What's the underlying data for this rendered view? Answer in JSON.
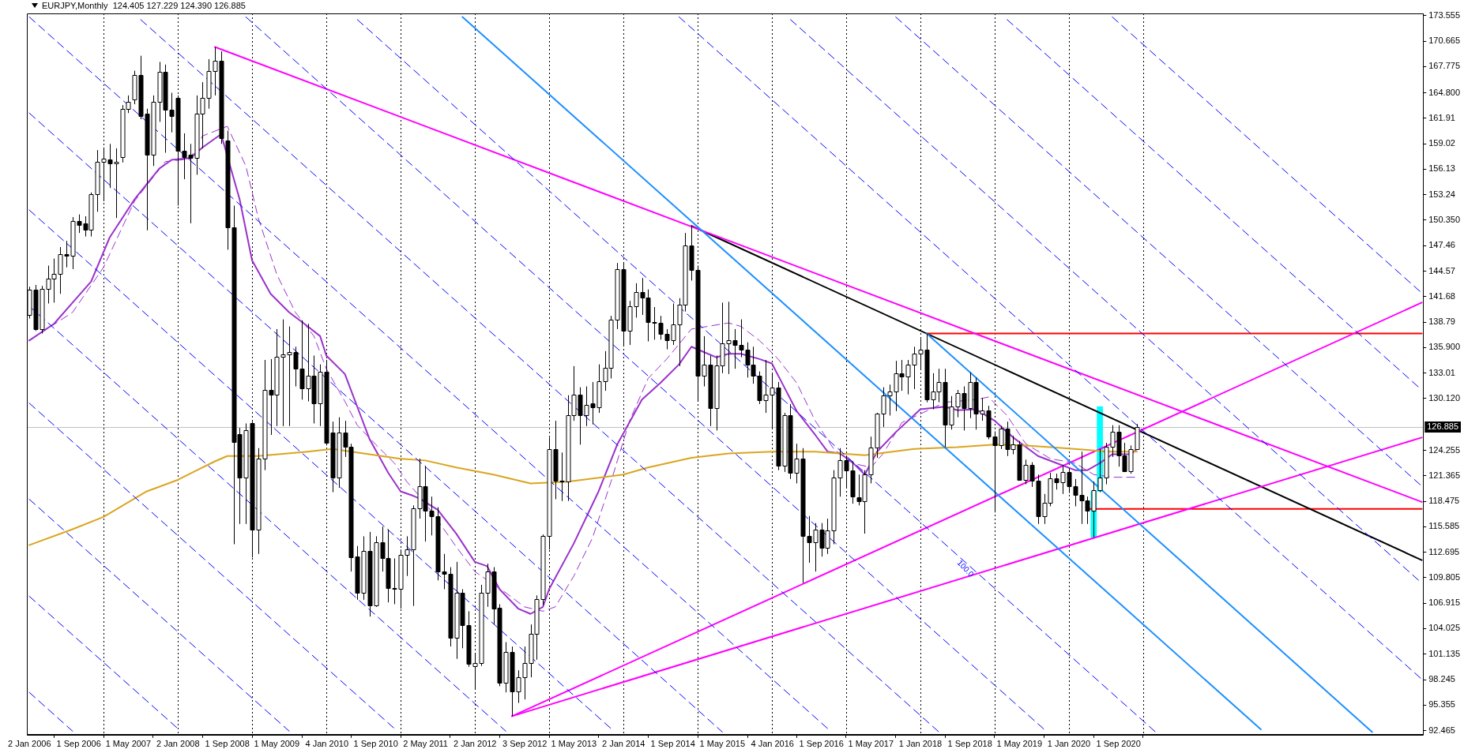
{
  "chart_data": {
    "type": "candlestick",
    "title": "EURJPY,Monthly  124.405 127.229 124.390 126.885",
    "color": "#000000",
    "colors": [
      "#ffffff",
      "#000000",
      "#ffffff",
      "#ffffff",
      "#ffffff",
      "#ffffff",
      "#000000",
      "#ffffff",
      "#000000",
      "#000000",
      "#ffffff",
      "#ffffff",
      "#ffffff",
      "#000000",
      "#ffffff",
      "#ffffff",
      "#ffffff",
      "#ffffff",
      "#000000",
      "#000000",
      "#ffffff",
      "#ffffff",
      "#000000",
      "#000000",
      "#000000",
      "#000000",
      "#000000",
      "#ffffff",
      "#ffffff",
      "#ffffff",
      "#ffffff",
      "#000000",
      "#000000",
      "#000000",
      "#000000",
      "#ffffff",
      "#000000",
      "#ffffff",
      "#ffffff",
      "#000000",
      "#ffffff",
      "#ffffff",
      "#ffffff",
      "#000000",
      "#000000",
      "#ffffff",
      "#000000",
      "#ffffff",
      "#000000",
      "#000000",
      "#ffffff",
      "#000000",
      "#000000",
      "#000000",
      "#ffffff",
      "#000000",
      "#ffffff",
      "#000000",
      "#000000",
      "#000000",
      "#ffffff",
      "#ffffff",
      "#ffffff",
      "#ffffff",
      "#000000",
      "#000000",
      "#000000",
      "#000000",
      "#000000",
      "#ffffff",
      "#000000",
      "#000000",
      "#ffffff",
      "#ffffff",
      "#ffffff",
      "#000000",
      "#000000",
      "#ffffff",
      "#000000",
      "#ffffff",
      "#ffffff",
      "#ffffff",
      "#ffffff",
      "#ffffff",
      "#ffffff",
      "#000000",
      "#000000",
      "#ffffff",
      "#ffffff",
      "#000000",
      "#ffffff",
      "#000000",
      "#ffffff",
      "#ffffff",
      "#ffffff",
      "#ffffff",
      "#000000",
      "#ffffff",
      "#ffffff",
      "#000000",
      "#000000",
      "#000000",
      "#000000",
      "#000000",
      "#ffffff",
      "#ffffff",
      "#ffffff",
      "#000000",
      "#000000",
      "#ffffff",
      "#000000",
      "#ffffff",
      "#ffffff",
      "#ffffff",
      "#000000",
      "#000000",
      "#000000",
      "#000000",
      "#000000",
      "#ffffff",
      "#ffffff",
      "#000000",
      "#ffffff",
      "#000000",
      "#ffffff",
      "#000000",
      "#000000",
      "#ffffff",
      "#000000",
      "#ffffff",
      "#ffffff",
      "#ffffff",
      "#000000",
      "#000000",
      "#000000",
      "#ffffff",
      "#ffffff",
      "#ffffff",
      "#ffffff",
      "#ffffff",
      "#ffffff",
      "#000000",
      "#ffffff",
      "#ffffff",
      "#ffffff",
      "#000000",
      "#ffffff",
      "#ffffff",
      "#000000",
      "#ffffff",
      "#ffffff",
      "#000000",
      "#ffffff",
      "#000000",
      "#ffffff",
      "#000000",
      "#000000",
      "#ffffff",
      "#000000",
      "#ffffff",
      "#000000",
      "#ffffff",
      "#000000",
      "#000000",
      "#ffffff",
      "#ffffff",
      "#000000",
      "#ffffff",
      "#000000",
      "#000000",
      "#000000",
      "#000000",
      "#ffffff",
      "#ffffff",
      "#ffffff",
      "#ffffff",
      "#000000",
      "#000000",
      "#ffffff",
      "#ffffff"
    ],
    "marker": "none",
    "x": [
      "2006-01",
      "2006-02",
      "2006-03",
      "2006-04",
      "2006-05",
      "2006-06",
      "2006-07",
      "2006-08",
      "2006-09",
      "2006-10",
      "2006-11",
      "2006-12",
      "2007-01",
      "2007-02",
      "2007-03",
      "2007-04",
      "2007-05",
      "2007-06",
      "2007-07",
      "2007-08",
      "2007-09",
      "2007-10",
      "2007-11",
      "2007-12",
      "2008-01",
      "2008-02",
      "2008-03",
      "2008-04",
      "2008-05",
      "2008-06",
      "2008-07",
      "2008-08",
      "2008-09",
      "2008-10",
      "2008-11",
      "2008-12",
      "2009-01",
      "2009-02",
      "2009-03",
      "2009-04",
      "2009-05",
      "2009-06",
      "2009-07",
      "2009-08",
      "2009-09",
      "2009-10",
      "2009-11",
      "2009-12",
      "2010-01",
      "2010-02",
      "2010-03",
      "2010-04",
      "2010-05",
      "2010-06",
      "2010-07",
      "2010-08",
      "2010-09",
      "2010-10",
      "2010-11",
      "2010-12",
      "2011-01",
      "2011-02",
      "2011-03",
      "2011-04",
      "2011-05",
      "2011-06",
      "2011-07",
      "2011-08",
      "2011-09",
      "2011-10",
      "2011-11",
      "2011-12",
      "2012-01",
      "2012-02",
      "2012-03",
      "2012-04",
      "2012-05",
      "2012-06",
      "2012-07",
      "2012-08",
      "2012-09",
      "2012-10",
      "2012-11",
      "2012-12",
      "2013-01",
      "2013-02",
      "2013-03",
      "2013-04",
      "2013-05",
      "2013-06",
      "2013-07",
      "2013-08",
      "2013-09",
      "2013-10",
      "2013-11",
      "2013-12",
      "2014-01",
      "2014-02",
      "2014-03",
      "2014-04",
      "2014-05",
      "2014-06",
      "2014-07",
      "2014-08",
      "2014-09",
      "2014-10",
      "2014-11",
      "2014-12",
      "2015-01",
      "2015-02",
      "2015-03",
      "2015-04",
      "2015-05",
      "2015-06",
      "2015-07",
      "2015-08",
      "2015-09",
      "2015-10",
      "2015-11",
      "2015-12",
      "2016-01",
      "2016-02",
      "2016-03",
      "2016-04",
      "2016-05",
      "2016-06",
      "2016-07",
      "2016-08",
      "2016-09",
      "2016-10",
      "2016-11",
      "2016-12",
      "2017-01",
      "2017-02",
      "2017-03",
      "2017-04",
      "2017-05",
      "2017-06",
      "2017-07",
      "2017-08",
      "2017-09",
      "2017-10",
      "2017-11",
      "2017-12",
      "2018-01",
      "2018-02",
      "2018-03",
      "2018-04",
      "2018-05",
      "2018-06",
      "2018-07",
      "2018-08",
      "2018-09",
      "2018-10",
      "2018-11",
      "2018-12",
      "2019-01",
      "2019-02",
      "2019-03",
      "2019-04",
      "2019-05",
      "2019-06",
      "2019-07",
      "2019-08",
      "2019-09",
      "2019-10",
      "2019-11",
      "2019-12",
      "2020-01",
      "2020-02",
      "2020-03",
      "2020-04",
      "2020-05",
      "2020-06",
      "2020-07",
      "2020-08",
      "2020-09",
      "2020-10",
      "2020-11",
      "2020-12"
    ],
    "ohlc": [
      [
        139.6,
        142.8,
        139.2,
        142.5
      ],
      [
        142.5,
        143.0,
        137.8,
        138.0
      ],
      [
        138.0,
        142.9,
        137.5,
        142.6
      ],
      [
        142.6,
        145.2,
        140.9,
        143.7
      ],
      [
        143.7,
        146.0,
        141.0,
        144.3
      ],
      [
        144.3,
        147.3,
        142.0,
        146.5
      ],
      [
        146.5,
        148.0,
        145.0,
        146.3
      ],
      [
        146.3,
        150.7,
        144.8,
        150.3
      ],
      [
        150.3,
        151.0,
        148.9,
        149.8
      ],
      [
        150.0,
        150.8,
        148.5,
        149.3
      ],
      [
        149.3,
        153.5,
        148.5,
        153.3
      ],
      [
        153.3,
        158.3,
        151.3,
        157.0
      ],
      [
        157.0,
        158.6,
        152.5,
        157.3
      ],
      [
        157.2,
        159.0,
        154.0,
        156.8
      ],
      [
        156.8,
        158.5,
        150.6,
        157.0
      ],
      [
        157.5,
        163.4,
        156.9,
        163.0
      ],
      [
        163.0,
        164.5,
        162.5,
        163.8
      ],
      [
        164.0,
        167.3,
        163.5,
        166.8
      ],
      [
        166.8,
        169.0,
        161.8,
        162.2
      ],
      [
        162.4,
        163.0,
        149.2,
        157.8
      ],
      [
        157.8,
        164.5,
        156.5,
        163.8
      ],
      [
        163.8,
        168.3,
        161.5,
        167.2
      ],
      [
        167.2,
        168.0,
        158.0,
        162.9
      ],
      [
        162.9,
        164.8,
        160.3,
        162.2
      ],
      [
        164.2,
        164.5,
        152.0,
        158.2
      ],
      [
        158.2,
        160.2,
        155.0,
        157.5
      ],
      [
        157.8,
        159.0,
        150.0,
        157.4
      ],
      [
        157.4,
        164.5,
        155.5,
        162.4
      ],
      [
        162.4,
        166.0,
        158.5,
        164.2
      ],
      [
        164.2,
        168.6,
        163.0,
        167.3
      ],
      [
        167.3,
        169.96,
        164.5,
        168.4
      ],
      [
        168.4,
        169.5,
        159.0,
        159.7
      ],
      [
        159.4,
        160.5,
        147.0,
        149.5
      ],
      [
        149.5,
        152.0,
        113.6,
        125.2
      ],
      [
        126.1,
        126.8,
        115.9,
        121.2
      ],
      [
        121.2,
        127.3,
        115.9,
        126.5
      ],
      [
        127.3,
        127.5,
        112.1,
        115.3
      ],
      [
        115.3,
        124.5,
        112.5,
        123.3
      ],
      [
        123.3,
        134.5,
        122.0,
        131.1
      ],
      [
        131.1,
        134.6,
        126.0,
        130.6
      ],
      [
        130.6,
        138.0,
        127.0,
        134.9
      ],
      [
        134.9,
        139.1,
        127.0,
        135.1
      ],
      [
        135.1,
        138.3,
        127.0,
        135.4
      ],
      [
        135.4,
        136.0,
        131.5,
        133.5
      ],
      [
        133.5,
        139.0,
        130.0,
        131.3
      ],
      [
        131.3,
        138.6,
        129.8,
        132.7
      ],
      [
        132.7,
        135.0,
        127.3,
        129.6
      ],
      [
        129.6,
        134.0,
        127.0,
        133.2
      ],
      [
        133.2,
        134.5,
        124.8,
        125.1
      ],
      [
        126.3,
        127.5,
        119.5,
        121.2
      ],
      [
        121.2,
        128.0,
        120.0,
        126.3
      ],
      [
        126.3,
        127.6,
        123.5,
        124.7
      ],
      [
        124.7,
        125.0,
        110.5,
        112.1
      ],
      [
        112.2,
        113.4,
        107.3,
        108.1
      ],
      [
        108.1,
        114.5,
        107.3,
        112.8
      ],
      [
        112.8,
        115.0,
        105.4,
        106.7
      ],
      [
        106.7,
        114.5,
        106.5,
        113.8
      ],
      [
        113.8,
        115.6,
        110.5,
        112.0
      ],
      [
        112.0,
        115.3,
        107.0,
        108.6
      ],
      [
        108.6,
        112.0,
        106.8,
        108.5
      ],
      [
        108.5,
        113.0,
        106.3,
        112.4
      ],
      [
        112.4,
        114.5,
        110.0,
        113.0
      ],
      [
        113.0,
        118.0,
        106.6,
        117.7
      ],
      [
        117.7,
        123.3,
        116.5,
        120.2
      ],
      [
        120.2,
        122.5,
        113.9,
        117.4
      ],
      [
        117.4,
        119.0,
        114.6,
        116.8
      ],
      [
        116.8,
        117.8,
        109.5,
        110.5
      ],
      [
        110.5,
        112.5,
        108.5,
        110.2
      ],
      [
        110.2,
        111.0,
        102.0,
        103.0
      ],
      [
        103.0,
        111.6,
        100.6,
        108.1
      ],
      [
        108.1,
        108.5,
        101.8,
        104.4
      ],
      [
        104.4,
        106.0,
        99.7,
        100.0
      ],
      [
        99.8,
        101.2,
        97.2,
        100.1
      ],
      [
        100.1,
        109.0,
        99.8,
        108.1
      ],
      [
        108.1,
        111.4,
        106.5,
        110.5
      ],
      [
        110.5,
        111.0,
        104.5,
        106.3
      ],
      [
        106.4,
        106.8,
        97.5,
        97.9
      ],
      [
        97.9,
        102.5,
        96.8,
        101.4
      ],
      [
        101.4,
        102.0,
        94.1,
        96.9
      ],
      [
        96.9,
        99.3,
        95.6,
        98.5
      ],
      [
        98.5,
        102.0,
        96.0,
        100.1
      ],
      [
        100.1,
        104.5,
        98.5,
        103.4
      ],
      [
        103.4,
        107.8,
        100.5,
        107.4
      ],
      [
        107.4,
        114.7,
        106.7,
        114.5
      ],
      [
        114.5,
        125.7,
        113.0,
        124.4
      ],
      [
        124.4,
        127.6,
        118.7,
        120.8
      ],
      [
        120.8,
        124.0,
        118.5,
        120.7
      ],
      [
        120.7,
        130.5,
        118.5,
        128.2
      ],
      [
        128.2,
        133.8,
        127.6,
        130.6
      ],
      [
        130.6,
        131.4,
        124.9,
        128.2
      ],
      [
        128.2,
        131.5,
        127.0,
        129.4
      ],
      [
        129.6,
        132.0,
        127.2,
        129.1
      ],
      [
        129.1,
        134.0,
        128.5,
        132.1
      ],
      [
        132.1,
        135.5,
        131.0,
        133.6
      ],
      [
        133.6,
        139.5,
        132.4,
        139.1
      ],
      [
        139.1,
        145.5,
        138.0,
        144.8
      ],
      [
        144.8,
        145.5,
        136.2,
        137.8
      ],
      [
        137.8,
        141.2,
        136.2,
        140.6
      ],
      [
        140.6,
        143.2,
        139.3,
        142.2
      ],
      [
        142.2,
        143.8,
        139.6,
        141.6
      ],
      [
        141.6,
        142.5,
        136.6,
        138.8
      ],
      [
        138.8,
        140.5,
        136.8,
        138.7
      ],
      [
        138.7,
        139.5,
        136.8,
        137.5
      ],
      [
        137.5,
        138.0,
        135.7,
        136.7
      ],
      [
        136.7,
        140.9,
        136.2,
        138.5
      ],
      [
        138.5,
        141.5,
        133.8,
        140.8
      ],
      [
        140.8,
        148.9,
        140.0,
        147.5
      ],
      [
        147.5,
        149.7,
        143.5,
        144.7
      ],
      [
        144.7,
        145.2,
        129.9,
        132.7
      ],
      [
        132.7,
        137.2,
        131.5,
        134.0
      ],
      [
        134.0,
        135.0,
        127.0,
        129.0
      ],
      [
        129.0,
        135.0,
        126.5,
        133.9
      ],
      [
        133.9,
        141.0,
        133.0,
        136.4
      ],
      [
        136.4,
        141.1,
        132.9,
        136.7
      ],
      [
        136.7,
        138.0,
        133.5,
        136.2
      ],
      [
        136.2,
        139.1,
        134.8,
        135.7
      ],
      [
        135.7,
        136.5,
        132.5,
        134.0
      ],
      [
        134.0,
        136.0,
        131.8,
        132.7
      ],
      [
        132.7,
        133.2,
        129.5,
        129.9
      ],
      [
        129.9,
        134.5,
        128.5,
        130.6
      ],
      [
        130.6,
        133.0,
        126.8,
        131.4
      ],
      [
        131.4,
        132.0,
        122.0,
        122.5
      ],
      [
        122.5,
        128.5,
        121.8,
        128.2
      ],
      [
        128.2,
        129.5,
        121.0,
        121.7
      ],
      [
        121.7,
        125.0,
        120.5,
        123.3
      ],
      [
        123.3,
        124.5,
        109.2,
        114.5
      ],
      [
        114.5,
        116.8,
        111.5,
        113.8
      ],
      [
        113.8,
        116.0,
        110.5,
        115.3
      ],
      [
        115.3,
        116.0,
        112.2,
        113.2
      ],
      [
        113.2,
        116.5,
        112.5,
        115.2
      ],
      [
        115.2,
        122.0,
        113.6,
        121.2
      ],
      [
        121.2,
        124.5,
        119.0,
        123.1
      ],
      [
        123.1,
        123.5,
        120.0,
        122.0
      ],
      [
        122.0,
        123.0,
        118.2,
        119.0
      ],
      [
        118.9,
        121.5,
        118.0,
        118.5
      ],
      [
        118.5,
        122.0,
        114.8,
        121.5
      ],
      [
        121.5,
        125.8,
        120.5,
        124.6
      ],
      [
        124.6,
        128.5,
        123.4,
        128.4
      ],
      [
        128.4,
        131.4,
        126.9,
        130.5
      ],
      [
        130.5,
        131.7,
        128.2,
        130.9
      ],
      [
        130.9,
        134.4,
        128.7,
        133.0
      ],
      [
        133.0,
        134.5,
        131.0,
        132.6
      ],
      [
        132.6,
        134.5,
        130.6,
        134.0
      ],
      [
        134.0,
        136.0,
        131.2,
        135.2
      ],
      [
        135.2,
        136.9,
        133.5,
        135.7
      ],
      [
        135.7,
        137.5,
        129.7,
        130.0
      ],
      [
        130.0,
        133.0,
        128.9,
        130.9
      ],
      [
        130.9,
        133.5,
        129.7,
        132.0
      ],
      [
        132.0,
        133.5,
        124.6,
        127.2
      ],
      [
        127.2,
        130.4,
        126.6,
        129.2
      ],
      [
        129.2,
        131.1,
        128.0,
        130.7
      ],
      [
        130.7,
        131.5,
        126.5,
        129.0
      ],
      [
        129.0,
        133.1,
        127.9,
        132.0
      ],
      [
        132.0,
        132.5,
        126.6,
        128.4
      ],
      [
        128.4,
        130.2,
        127.6,
        128.8
      ],
      [
        128.8,
        129.3,
        125.5,
        125.8
      ],
      [
        125.8,
        126.4,
        117.2,
        124.8
      ],
      [
        124.8,
        127.0,
        124.4,
        126.7
      ],
      [
        126.7,
        127.5,
        123.6,
        124.4
      ],
      [
        124.4,
        125.9,
        123.8,
        124.9
      ],
      [
        124.9,
        125.3,
        120.8,
        120.9
      ],
      [
        120.9,
        123.2,
        120.4,
        122.6
      ],
      [
        122.6,
        122.9,
        120.1,
        120.8
      ],
      [
        120.8,
        121.5,
        115.9,
        116.8
      ],
      [
        116.8,
        119.3,
        115.9,
        118.3
      ],
      [
        118.3,
        121.7,
        117.9,
        121.1
      ],
      [
        121.1,
        121.6,
        119.8,
        120.6
      ],
      [
        120.6,
        122.6,
        119.3,
        121.8
      ],
      [
        121.8,
        122.2,
        119.4,
        120.2
      ],
      [
        120.2,
        121.0,
        117.9,
        119.2
      ],
      [
        119.2,
        124.1,
        115.9,
        118.6
      ],
      [
        118.6,
        119.0,
        115.9,
        117.4
      ],
      [
        117.4,
        120.7,
        114.4,
        119.7
      ],
      [
        119.7,
        124.4,
        119.5,
        121.2
      ],
      [
        121.2,
        125.1,
        120.4,
        124.7
      ],
      [
        124.7,
        127.1,
        123.5,
        126.4
      ],
      [
        126.4,
        127.1,
        122.4,
        123.7
      ],
      [
        123.7,
        125.1,
        121.8,
        121.9
      ],
      [
        121.9,
        124.8,
        121.6,
        124.4
      ],
      [
        124.405,
        127.229,
        124.39,
        126.885
      ]
    ],
    "series": [
      {
        "type": "bar",
        "color": "#00ffff",
        "x": [
          "2020-05",
          "2020-06"
        ],
        "base": [
          114.4,
          119.6
        ],
        "values": [
          5.2,
          9.6
        ]
      },
      {
        "type": "line",
        "color": "#0000ff",
        "line_style": "dashed",
        "x": [
          "2006-01",
          "2006-08"
        ],
        "values": [
          96.8,
          92.4
        ]
      },
      {
        "type": "line",
        "color": "#0000ff",
        "line_style": "dashed",
        "x": [
          "2006-01",
          "2008-01"
        ],
        "values": [
          107.7,
          92.7
        ]
      },
      {
        "type": "line",
        "color": "#0000ff",
        "line_style": "dashed",
        "x": [
          "2006-01",
          "2009-07"
        ],
        "values": [
          118.7,
          92.4
        ]
      },
      {
        "type": "line",
        "color": "#0000ff",
        "line_style": "dashed",
        "x": [
          "2006-01",
          "2010-12"
        ],
        "values": [
          129.6,
          92.7
        ]
      },
      {
        "type": "line",
        "color": "#0000ff",
        "line_style": "dashed",
        "x": [
          "2006-01",
          "2012-06"
        ],
        "values": [
          140.6,
          92.4
        ]
      },
      {
        "type": "line",
        "color": "#0000ff",
        "line_style": "dashed",
        "x": [
          "2006-01",
          "2013-11"
        ],
        "values": [
          151.5,
          92.7
        ]
      },
      {
        "type": "line",
        "color": "#0000ff",
        "line_style": "dashed",
        "x": [
          "2006-01",
          "2015-05"
        ],
        "values": [
          162.5,
          92.3
        ]
      },
      {
        "type": "line",
        "color": "#0000ff",
        "line_style": "dashed",
        "x": [
          "2006-01",
          "2016-10"
        ],
        "values": [
          173.4,
          92.7
        ]
      },
      {
        "type": "line",
        "color": "#0000ff",
        "line_style": "dashed",
        "x": [
          "2007-07",
          "2018-04"
        ],
        "values": [
          173.1,
          92.3
        ]
      },
      {
        "type": "line",
        "color": "#0000ff",
        "line_style": "dashed",
        "x": [
          "2008-12",
          "2019-09"
        ],
        "values": [
          173.4,
          92.6
        ]
      },
      {
        "type": "line",
        "color": "#0000ff",
        "line_style": "dashed",
        "x": [
          "2010-06",
          "2021-03"
        ],
        "values": [
          173.1,
          92.3
        ]
      },
      {
        "type": "line",
        "color": "#0000ff",
        "line_style": "dashed",
        "x": [
          "2014-10",
          "2024-10"
        ],
        "values": [
          173.4,
          98.3
        ]
      },
      {
        "type": "line",
        "color": "#0000ff",
        "line_style": "dashed",
        "x": [
          "2016-04",
          "2024-10"
        ],
        "values": [
          173.1,
          109.2
        ]
      },
      {
        "type": "line",
        "color": "#0000ff",
        "line_style": "dashed",
        "x": [
          "2017-09",
          "2024-10"
        ],
        "values": [
          173.4,
          120.2
        ]
      },
      {
        "type": "line",
        "color": "#0000ff",
        "line_style": "dashed",
        "x": [
          "2019-03",
          "2024-10"
        ],
        "values": [
          173.1,
          131.1
        ]
      },
      {
        "type": "line",
        "color": "#0000ff",
        "line_style": "dashed",
        "x": [
          "2020-08",
          "2024-10"
        ],
        "values": [
          173.4,
          142.1
        ]
      },
      {
        "type": "line",
        "color": "#1e90ff",
        "line_style": "solid",
        "x": [
          "2011-11",
          "2022-08"
        ],
        "values": [
          173.4,
          92.6
        ]
      },
      {
        "type": "line",
        "color": "#1e90ff",
        "line_style": "solid",
        "x": [
          "2018-02",
          "2024-02"
        ],
        "values": [
          137.5,
          92.3
        ]
      },
      {
        "type": "line",
        "color": "#daa520",
        "line_style": "solid",
        "x": [
          "2006-01",
          "2006-08",
          "2007-01",
          "2007-08",
          "2008-01",
          "2008-07",
          "2008-09",
          "2009-02",
          "2009-10",
          "2010-02",
          "2011-01",
          "2011-05",
          "2011-10",
          "2012-04",
          "2012-10",
          "2013-04",
          "2014-01",
          "2014-05",
          "2014-12",
          "2015-06",
          "2016-01",
          "2016-08",
          "2017-04",
          "2017-12",
          "2018-07",
          "2019-01",
          "2019-06",
          "2019-10",
          "2020-04",
          "2020-07",
          "2020-12"
        ],
        "values": [
          113.5,
          115.3,
          116.7,
          119.6,
          120.9,
          123.0,
          123.6,
          123.6,
          124.1,
          124.4,
          123.3,
          123.1,
          122.3,
          121.5,
          120.5,
          120.7,
          121.5,
          122.3,
          123.4,
          123.9,
          124.1,
          124.1,
          123.7,
          124.4,
          124.6,
          124.9,
          124.8,
          124.6,
          124.3,
          124.1,
          124.1
        ]
      },
      {
        "type": "line",
        "color": "#9932cc",
        "line_style": "dashed",
        "x": [
          "2006-01",
          "2006-08",
          "2007-01",
          "2007-06",
          "2007-11",
          "2008-03",
          "2008-05",
          "2008-08",
          "2008-09",
          "2008-12",
          "2009-02",
          "2009-05",
          "2009-08",
          "2009-11",
          "2010-01",
          "2010-04",
          "2010-06",
          "2010-09",
          "2010-12",
          "2011-02",
          "2011-05",
          "2011-07",
          "2011-10",
          "2012-01",
          "2012-04",
          "2012-06",
          "2012-09",
          "2012-12",
          "2013-02",
          "2013-05",
          "2013-08",
          "2013-11",
          "2014-02",
          "2014-05",
          "2014-08",
          "2014-12",
          "2015-06",
          "2015-08",
          "2015-11",
          "2016-02",
          "2016-05",
          "2016-08",
          "2016-11",
          "2017-02",
          "2017-05",
          "2017-07",
          "2017-10",
          "2018-01",
          "2018-05",
          "2018-07",
          "2018-10",
          "2018-12",
          "2019-03",
          "2019-06",
          "2019-10",
          "2020-02",
          "2020-05",
          "2020-08",
          "2020-12"
        ],
        "values": [
          136.7,
          139.9,
          145.0,
          152.5,
          157.0,
          157.3,
          159.9,
          null,
          161.0,
          156.5,
          150.6,
          144.2,
          139.9,
          137.2,
          133.5,
          129.8,
          127.1,
          124.9,
          122.8,
          120.7,
          118.3,
          null,
          113.3,
          110.5,
          null,
          108.1,
          106.5,
          106.0,
          106.5,
          110.0,
          114.3,
          120.7,
          127.6,
          132.4,
          134.6,
          138.0,
          138.7,
          138.3,
          136.7,
          134.6,
          131.9,
          127.6,
          124.4,
          122.8,
          122.3,
          123.9,
          127.4,
          null,
          129.7,
          null,
          130.0,
          130.3,
          128.2,
          125.0,
          123.3,
          122.8,
          121.5,
          121.2,
          121.2
        ]
      },
      {
        "type": "line",
        "color": "#9932cc",
        "line_style": "solid",
        "x": [
          "2006-01",
          "2006-05",
          "2006-08",
          "2006-11",
          "2007-02",
          "2007-06",
          "2007-10",
          "2007-12",
          "2008-03",
          "2008-05",
          "2008-08",
          "2008-09",
          "2008-11",
          "2009-01",
          "2009-04",
          "2009-07",
          "2009-10",
          "2009-12",
          "2010-01",
          "2010-04",
          "2010-06",
          "2010-08",
          "2010-11",
          "2011-01",
          "2011-03",
          "2011-04",
          "2011-07",
          "2011-10",
          "2012-01",
          "2012-03",
          "2012-05",
          "2012-08",
          "2012-10",
          "2012-12",
          "2013-01",
          "2013-05",
          "2013-09",
          "2013-12",
          "2014-04",
          "2014-07",
          "2014-10",
          "2014-12",
          "2015-02",
          "2015-04",
          "2015-06",
          "2015-08",
          "2015-11",
          "2016-01",
          "2016-03",
          "2016-05",
          "2016-08",
          "2016-10",
          "2016-12",
          "2017-02",
          "2017-04",
          "2017-06",
          "2017-09",
          "2018-01",
          "2018-05",
          "2018-07",
          "2018-10",
          "2019-01",
          "2019-04",
          "2019-08",
          "2019-11",
          "2020-02",
          "2020-04",
          "2020-06",
          "2020-08",
          "2020-11",
          "2020-12"
        ],
        "values": [
          136.7,
          138.6,
          141.0,
          143.4,
          148.4,
          152.7,
          156.2,
          157.2,
          157.4,
          158.6,
          160.1,
          null,
          152.7,
          145.8,
          142.0,
          139.9,
          138.3,
          137.2,
          135.0,
          132.9,
          129.2,
          125.5,
          121.7,
          119.6,
          119.1,
          118.8,
          117.5,
          114.8,
          111.6,
          111.1,
          108.5,
          106.3,
          105.7,
          106.5,
          108.5,
          113.7,
          119.6,
          124.9,
          130.0,
          131.9,
          134.0,
          136.0,
          135.4,
          134.8,
          135.2,
          135.2,
          134.6,
          134.1,
          131.4,
          128.7,
          126.0,
          124.1,
          123.9,
          122.9,
          121.5,
          124.1,
          126.3,
          128.9,
          129.2,
          128.8,
          128.9,
          127.6,
          125.7,
          123.6,
          122.8,
          122.0,
          122.0,
          122.8,
          123.8,
          123.8,
          124.4
        ]
      },
      {
        "type": "line",
        "color": "#ff00ff",
        "line_style": "solid",
        "x": [
          "2008-07",
          "2024-10"
        ],
        "values": [
          170.0,
          118.4
        ]
      },
      {
        "type": "line",
        "color": "#ff00ff",
        "line_style": "solid",
        "x": [
          "2012-07",
          "2024-10"
        ],
        "values": [
          94.1,
          141.0
        ]
      },
      {
        "type": "line",
        "color": "#ff00ff",
        "line_style": "solid",
        "x": [
          "2012-07",
          "2024-10"
        ],
        "values": [
          94.1,
          125.7
        ]
      },
      {
        "type": "line",
        "color": "#000000",
        "line_style": "solid",
        "x": [
          "2014-12",
          "2024-10"
        ],
        "values": [
          149.7,
          111.8
        ]
      },
      {
        "type": "line",
        "color": "#ff0000",
        "line_style": "solid",
        "x": [
          "2018-02",
          "2024-10"
        ],
        "values": [
          137.5,
          137.5
        ]
      },
      {
        "type": "line",
        "color": "#ff0000",
        "line_style": "solid",
        "x": [
          "2020-04",
          "2024-10"
        ],
        "values": [
          117.6,
          117.6
        ]
      }
    ],
    "xlim": [
      "2005-12-20",
      "2024-10-08"
    ],
    "ylim": [
      92.0,
      173.8
    ],
    "xticks": [
      {
        "value": "2006-01-02",
        "label": "2 Jan 2006"
      },
      {
        "value": "2006-09-01",
        "label": "1 Sep 2006"
      },
      {
        "value": "2007-05-01",
        "label": "1 May 2007"
      },
      {
        "value": "2008-01-02",
        "label": "2 Jan 2008"
      },
      {
        "value": "2008-09-01",
        "label": "1 Sep 2008"
      },
      {
        "value": "2009-05-01",
        "label": "1 May 2009"
      },
      {
        "value": "2010-01-04",
        "label": "4 Jan 2010"
      },
      {
        "value": "2010-09-01",
        "label": "1 Sep 2010"
      },
      {
        "value": "2011-05-02",
        "label": "2 May 2011"
      },
      {
        "value": "2012-01-02",
        "label": "2 Jan 2012"
      },
      {
        "value": "2012-09-03",
        "label": "3 Sep 2012"
      },
      {
        "value": "2013-05-01",
        "label": "1 May 2013"
      },
      {
        "value": "2014-01-02",
        "label": "2 Jan 2014"
      },
      {
        "value": "2014-09-01",
        "label": "1 Sep 2014"
      },
      {
        "value": "2015-05-01",
        "label": "1 May 2015"
      },
      {
        "value": "2016-01-04",
        "label": "4 Jan 2016"
      },
      {
        "value": "2016-09-01",
        "label": "1 Sep 2016"
      },
      {
        "value": "2017-05-01",
        "label": "1 May 2017"
      },
      {
        "value": "2018-01-01",
        "label": "1 Jan 2018"
      },
      {
        "value": "2018-09-01",
        "label": "1 Sep 2018"
      },
      {
        "value": "2019-05-01",
        "label": "1 May 2019"
      },
      {
        "value": "2020-01-01",
        "label": "1 Jan 2020"
      },
      {
        "value": "2020-09-01",
        "label": "1 Sep 2020"
      }
    ],
    "yticks": [
      92.465,
      95.355,
      98.245,
      101.135,
      104.025,
      106.915,
      109.805,
      112.695,
      115.585,
      118.475,
      121.365,
      124.255,
      {
        "value": 130.12,
        "label": "130.120"
      },
      133.01,
      {
        "value": 135.9,
        "label": "135.900"
      },
      138.79,
      141.68,
      144.57,
      147.46,
      {
        "value": 150.35,
        "label": "150.350"
      },
      153.24,
      156.13,
      159.02,
      161.91,
      {
        "value": 164.8,
        "label": "164.800"
      },
      167.775,
      170.665,
      173.555
    ],
    "ref_lines": [
      {
        "axis": "x",
        "value": "2007-01",
        "color": "#000000",
        "line_style": "dotted"
      },
      {
        "axis": "x",
        "value": "2008-01",
        "color": "#000000",
        "line_style": "dotted"
      },
      {
        "axis": "x",
        "value": "2009-01",
        "color": "#000000",
        "line_style": "dotted"
      },
      {
        "axis": "x",
        "value": "2010-01",
        "color": "#000000",
        "line_style": "dotted"
      },
      {
        "axis": "x",
        "value": "2011-01",
        "color": "#000000",
        "line_style": "dotted"
      },
      {
        "axis": "x",
        "value": "2012-01",
        "color": "#000000",
        "line_style": "dotted"
      },
      {
        "axis": "x",
        "value": "2013-01",
        "color": "#000000",
        "line_style": "dotted"
      },
      {
        "axis": "x",
        "value": "2014-01",
        "color": "#000000",
        "line_style": "dotted"
      },
      {
        "axis": "x",
        "value": "2015-01",
        "color": "#000000",
        "line_style": "dotted"
      },
      {
        "axis": "x",
        "value": "2016-01",
        "color": "#000000",
        "line_style": "dotted"
      },
      {
        "axis": "x",
        "value": "2017-01",
        "color": "#000000",
        "line_style": "dotted"
      },
      {
        "axis": "x",
        "value": "2018-01",
        "color": "#000000",
        "line_style": "dotted"
      },
      {
        "axis": "x",
        "value": "2019-01",
        "color": "#000000",
        "line_style": "dotted"
      },
      {
        "axis": "x",
        "value": "2020-01",
        "color": "#000000",
        "line_style": "dotted"
      },
      {
        "axis": "x",
        "value": "2021-01",
        "color": "#000000",
        "line_style": "dotted"
      },
      {
        "axis": "y",
        "value": 126.885,
        "label": "126.885",
        "color": "#c0c0c0",
        "line_style": "solid"
      }
    ],
    "annotations": [
      "100.0"
    ]
  }
}
